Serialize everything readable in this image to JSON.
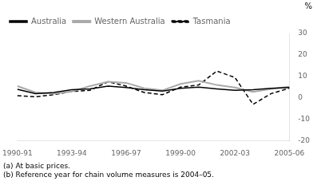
{
  "chart_data": {
    "type": "line",
    "categories": [
      "1990-91",
      null,
      null,
      "1993-94",
      null,
      null,
      "1996-97",
      null,
      null,
      "1999-00",
      null,
      null,
      "2002-03",
      null,
      null,
      "2005-06"
    ],
    "series": [
      {
        "name": "Australia",
        "color": "#000000",
        "line_style": "solid",
        "values": [
          4.0,
          2.0,
          2.5,
          3.8,
          4.2,
          5.5,
          4.8,
          3.8,
          3.2,
          4.5,
          5.0,
          4.2,
          3.5,
          3.8,
          4.5,
          4.8
        ]
      },
      {
        "name": "Western Australia",
        "color": "#aaaaaa",
        "line_style": "solid",
        "values": [
          5.5,
          2.5,
          2.0,
          3.0,
          5.5,
          7.5,
          7.0,
          4.5,
          3.5,
          6.5,
          8.0,
          6.0,
          4.8,
          2.8,
          4.2,
          5.2
        ]
      },
      {
        "name": "Tasmania",
        "color": "#000000",
        "line_style": "dashed",
        "values": [
          1.0,
          0.5,
          1.5,
          3.0,
          3.5,
          7.5,
          5.5,
          2.5,
          1.5,
          5.0,
          6.0,
          12.5,
          9.5,
          -3.0,
          2.0,
          4.5
        ]
      }
    ],
    "ylabel": "%",
    "ylim": [
      -20,
      30
    ],
    "yticks": [
      -20,
      -10,
      0,
      10,
      20,
      30
    ],
    "grid": false,
    "legend": "upper left",
    "annotations": [
      "(a) At basic prices.",
      "(b) Reference year for chain volume measures is 2004–05."
    ]
  }
}
